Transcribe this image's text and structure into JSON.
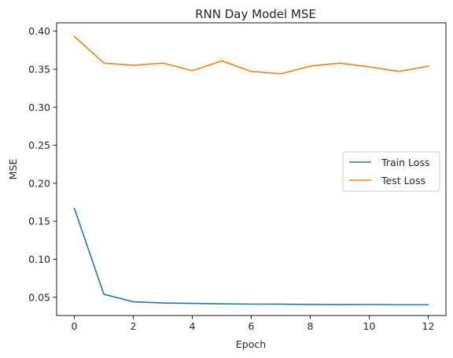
{
  "chart_data": {
    "type": "line",
    "title": "RNN Day Model MSE",
    "xlabel": "Epoch",
    "ylabel": "MSE",
    "xlim": [
      -0.6,
      12.6
    ],
    "ylim": [
      0.026,
      0.411
    ],
    "xticks": [
      0,
      2,
      4,
      6,
      8,
      10,
      12
    ],
    "yticks": [
      0.05,
      0.1,
      0.15,
      0.2,
      0.25,
      0.3,
      0.35,
      0.4
    ],
    "grid": false,
    "legend_position": "center-right",
    "x": [
      0,
      1,
      2,
      3,
      4,
      5,
      6,
      7,
      8,
      9,
      10,
      11,
      12
    ],
    "series": [
      {
        "name": "Train Loss",
        "color": "#1f77b4",
        "values": [
          0.167,
          0.054,
          0.044,
          0.0425,
          0.042,
          0.0413,
          0.041,
          0.0409,
          0.0406,
          0.0403,
          0.0405,
          0.0401,
          0.0401
        ]
      },
      {
        "name": "Test Loss",
        "color": "#ff7f0e",
        "values": [
          0.393,
          0.358,
          0.355,
          0.358,
          0.348,
          0.361,
          0.347,
          0.344,
          0.354,
          0.358,
          0.353,
          0.347,
          0.354
        ]
      }
    ]
  }
}
